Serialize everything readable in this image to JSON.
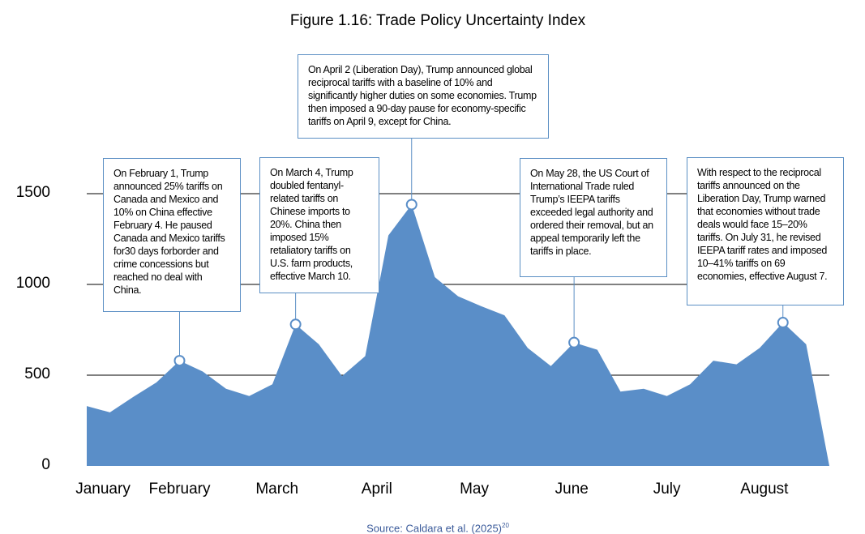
{
  "title": "Figure 1.16: Trade Policy Uncertainty Index",
  "source": {
    "text": "Source: Caldara et al. (2025)",
    "ref": "20"
  },
  "colors": {
    "area": "#5a8ec8",
    "marker_stroke": "#5a8ec8",
    "box_border": "#5b8fc4",
    "grid": "#000000",
    "source": "#3a5a9a"
  },
  "annotations": [
    {
      "text": "On February 1, Trump announced 25% tariffs on Canada and Mexico and 10% on China effective February 4. He paused Canada and Mexico tariffs for30 days forborder and crime concessions but reached no deal with China."
    },
    {
      "text": "On March 4, Trump doubled fentanyl-related tariffs on Chinese imports to 20%. China then imposed 15% retaliatory tariffs on U.S. farm products, effective March 10."
    },
    {
      "text": "On April 2 (Liberation Day), Trump announced global reciprocal tariffs with a baseline of 10% and significantly higher duties on some economies. Trump then imposed a 90-day pause for economy-specific tariffs on April 9, except for China."
    },
    {
      "text": "On May 28, the US Court of International Trade ruled Trump’s IEEPA tariffs exceeded legal authority and ordered their removal, but an appeal temporarily left the tariffs in place."
    },
    {
      "text": "With respect to the reciprocal tariffs announced on the Liberation Day, Trump warned that economies without trade deals would face 15–20% tariffs. On July 31, he revised IEEPA tariff rates and imposed 10–41% tariffs on 69 economies, effective August 7."
    }
  ],
  "chart_data": {
    "type": "area",
    "title": "Figure 1.16: Trade Policy Uncertainty Index",
    "xlabel": "",
    "ylabel": "",
    "ylim": [
      0,
      1750
    ],
    "yticks": [
      0,
      500,
      1000,
      1500
    ],
    "ytick_labels": [
      "0",
      "500",
      "1000",
      "1500"
    ],
    "grid": true,
    "x_tick_labels": [
      "January",
      "February",
      "March",
      "April",
      "May",
      "June",
      "July",
      "August"
    ],
    "x_tick_index": [
      0.7,
      4.0,
      8.2,
      12.5,
      16.7,
      20.9,
      25.0,
      29.2
    ],
    "series": [
      {
        "values": [
          330,
          295,
          380,
          460,
          580,
          520,
          425,
          385,
          450,
          780,
          670,
          495,
          605,
          1270,
          1440,
          1040,
          935,
          880,
          830,
          650,
          550,
          680,
          640,
          410,
          425,
          385,
          450,
          580,
          560,
          650,
          790,
          670,
          0
        ]
      }
    ],
    "markers": [
      {
        "index": 4,
        "value": 580
      },
      {
        "index": 9,
        "value": 780
      },
      {
        "index": 14,
        "value": 1440
      },
      {
        "index": 21,
        "value": 680
      },
      {
        "index": 30,
        "value": 790
      }
    ]
  }
}
